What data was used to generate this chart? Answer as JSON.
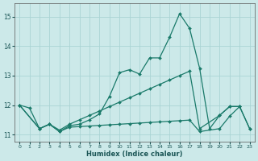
{
  "xlabel": "Humidex (Indice chaleur)",
  "xlim": [
    -0.5,
    23.5
  ],
  "ylim": [
    10.75,
    15.45
  ],
  "yticks": [
    11,
    12,
    13,
    14,
    15
  ],
  "xticks": [
    0,
    1,
    2,
    3,
    4,
    5,
    6,
    7,
    8,
    9,
    10,
    11,
    12,
    13,
    14,
    15,
    16,
    17,
    18,
    19,
    20,
    21,
    22,
    23
  ],
  "bg_color": "#cce9e9",
  "grid_color": "#aad4d4",
  "line_color": "#1a7a6a",
  "curve1_x": [
    0,
    1,
    2,
    3,
    4,
    5,
    6,
    7,
    8,
    9,
    10,
    11,
    12,
    13,
    14,
    15,
    16,
    17,
    18,
    19,
    20,
    21,
    22,
    23
  ],
  "curve1_y": [
    12.0,
    11.9,
    11.2,
    11.35,
    11.1,
    11.3,
    11.35,
    11.5,
    11.7,
    12.3,
    13.1,
    13.2,
    13.05,
    13.6,
    13.6,
    14.3,
    15.1,
    14.6,
    13.25,
    11.2,
    11.65,
    11.95,
    11.95,
    11.2
  ],
  "curve2_x": [
    0,
    2,
    3,
    4,
    5,
    6,
    7,
    8,
    9,
    10,
    11,
    12,
    13,
    14,
    15,
    16,
    17,
    18,
    20,
    21,
    22
  ],
  "curve2_y": [
    12.0,
    11.2,
    11.35,
    11.15,
    11.35,
    11.5,
    11.65,
    11.8,
    11.95,
    12.1,
    12.25,
    12.4,
    12.55,
    12.7,
    12.85,
    13.0,
    13.15,
    11.2,
    11.65,
    11.95,
    11.95
  ],
  "curve3_x": [
    0,
    2,
    3,
    4,
    5,
    6,
    7,
    8,
    9,
    10,
    11,
    12,
    13,
    14,
    15,
    16,
    17,
    18,
    20,
    21,
    22,
    23
  ],
  "curve3_y": [
    12.0,
    11.2,
    11.35,
    11.1,
    11.25,
    11.27,
    11.29,
    11.31,
    11.33,
    11.35,
    11.37,
    11.39,
    11.41,
    11.43,
    11.45,
    11.47,
    11.49,
    11.1,
    11.2,
    11.62,
    11.95,
    11.2
  ]
}
